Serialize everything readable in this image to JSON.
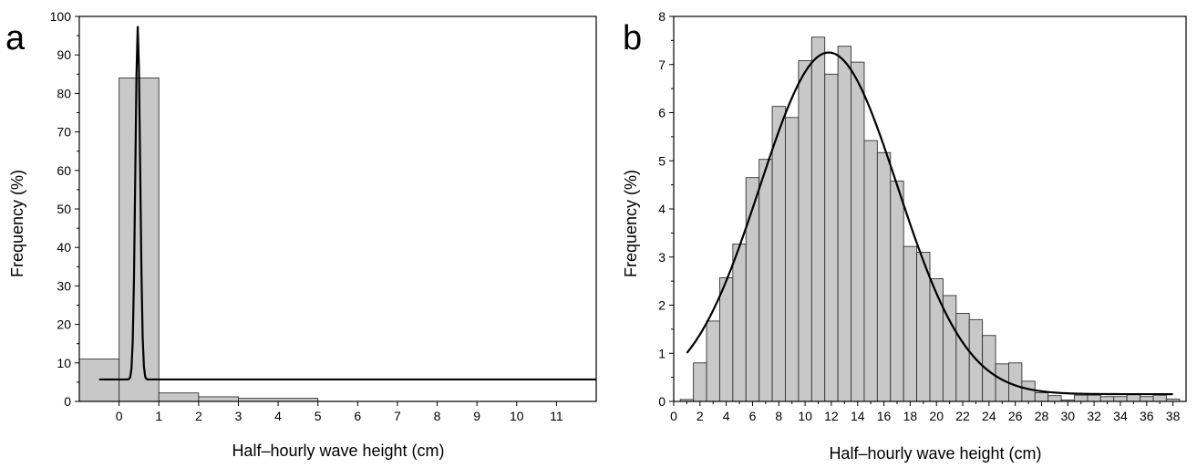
{
  "chart_data": [
    {
      "panel": "a",
      "type": "bar",
      "xlabel": "Half–hourly wave height (cm)",
      "ylabel": "Frequency (%)",
      "xlim": [
        -1,
        12
      ],
      "ylim": [
        0,
        100
      ],
      "xticks": [
        0,
        1,
        2,
        3,
        4,
        5,
        6,
        7,
        8,
        9,
        10,
        11
      ],
      "yticks": [
        0,
        10,
        20,
        30,
        40,
        50,
        60,
        70,
        80,
        90,
        100
      ],
      "bars": [
        {
          "x0": -1,
          "x1": 0,
          "value": 11
        },
        {
          "x0": 0,
          "x1": 1,
          "value": 84
        },
        {
          "x0": 1,
          "x1": 2,
          "value": 2.2
        },
        {
          "x0": 2,
          "x1": 3,
          "value": 1.2
        },
        {
          "x0": 3,
          "x1": 5,
          "value": 0.8
        }
      ],
      "fit_curve": {
        "shape": "gaussian",
        "baseline": 5.7,
        "peak_x": 0.47,
        "peak_y": 97.5,
        "sigma": 0.06,
        "x_start": -0.5,
        "x_end": 12
      },
      "bar_color": "#c8c8c8",
      "curve_color": "#000000"
    },
    {
      "panel": "b",
      "type": "bar",
      "xlabel": "Half–hourly wave height (cm)",
      "ylabel": "Frequency (%)",
      "xlim": [
        0,
        39
      ],
      "ylim": [
        0,
        8
      ],
      "xticks": [
        0,
        2,
        4,
        6,
        8,
        10,
        12,
        14,
        16,
        18,
        20,
        22,
        24,
        26,
        28,
        30,
        32,
        34,
        36,
        38
      ],
      "yticks": [
        0,
        1,
        2,
        3,
        4,
        5,
        6,
        7,
        8
      ],
      "bin_start": 0.5,
      "bin_width": 1,
      "values": [
        0.04,
        0.8,
        1.67,
        2.57,
        3.27,
        4.65,
        5.03,
        6.13,
        5.9,
        7.08,
        7.57,
        6.8,
        7.38,
        7.05,
        5.42,
        5.17,
        4.58,
        3.22,
        3.1,
        2.55,
        2.2,
        1.83,
        1.7,
        1.37,
        0.78,
        0.8,
        0.42,
        0.18,
        0.12,
        0.03,
        0.13,
        0.13,
        0.1,
        0.1,
        0.14,
        0.1,
        0.13,
        0.05
      ],
      "fit_curve": {
        "shape": "gaussian",
        "baseline": 0.15,
        "amplitude": 7.1,
        "mean": 11.8,
        "sigma": 5.25,
        "x_start": 1,
        "x_end": 38
      },
      "bar_color": "#c8c8c8",
      "curve_color": "#000000"
    }
  ]
}
